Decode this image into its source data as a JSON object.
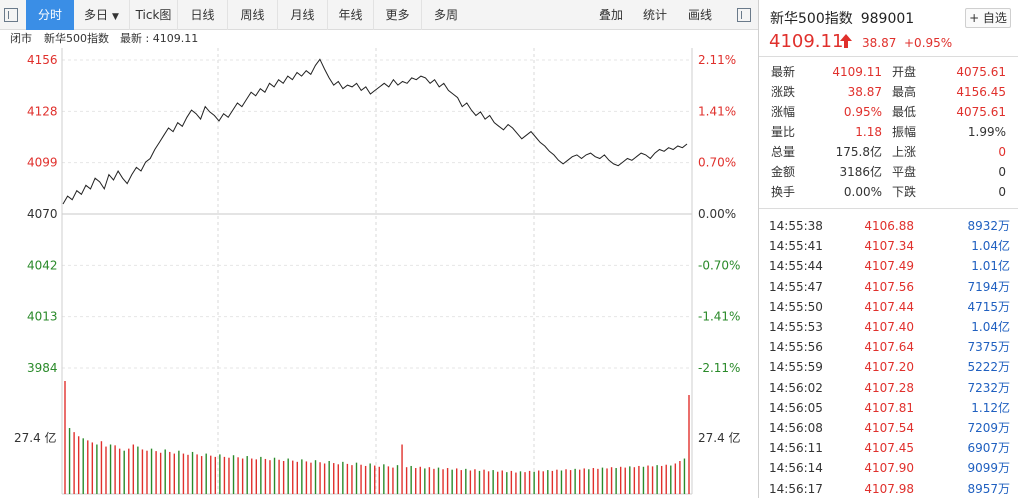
{
  "toolbar": {
    "buttons": [
      {
        "label": "分时",
        "active": true
      },
      {
        "label": "多日",
        "dropdown": true
      },
      {
        "label": "Tick图"
      },
      {
        "label": "日线"
      },
      {
        "label": "周线"
      },
      {
        "label": "月线"
      },
      {
        "label": "年线"
      },
      {
        "label": "更多"
      },
      {
        "label": "多周"
      }
    ],
    "right_items": [
      "叠加",
      "统计",
      "画线"
    ]
  },
  "infobar": {
    "status": "闭市",
    "index_name": "新华500指数",
    "latest_label": "最新 : 4109.11"
  },
  "chart_data": {
    "type": "line",
    "base": 4070,
    "price_axis_left": [
      "4156",
      "4128",
      "4099",
      "4070",
      "4042",
      "4013",
      "3984"
    ],
    "pct_axis_right": [
      "2.11%",
      "1.41%",
      "0.70%",
      "0.00%",
      "-0.70%",
      "-1.41%",
      "-2.11%"
    ],
    "ylim": [
      3984,
      4156
    ],
    "volume_label_left": "27.4 亿",
    "volume_label_right": "27.4 亿",
    "price_series": [
      4075.6,
      4080,
      4078,
      4083,
      4081,
      4086,
      4084,
      4090,
      4088,
      4084,
      4092,
      4089,
      4094,
      4090,
      4087,
      4092,
      4096,
      4094,
      4099,
      4101,
      4106,
      4110,
      4114,
      4118,
      4116,
      4121,
      4119,
      4124,
      4128,
      4126,
      4123,
      4130,
      4127,
      4125,
      4122,
      4126,
      4124,
      4128,
      4132,
      4130,
      4134,
      4138,
      4136,
      4140,
      4138,
      4143,
      4141,
      4145,
      4143,
      4147,
      4145,
      4149,
      4147,
      4150,
      4148,
      4153,
      4156.4,
      4151,
      4146,
      4142,
      4144,
      4140,
      4142,
      4141,
      4143,
      4139,
      4141,
      4137,
      4139,
      4141,
      4143,
      4141,
      4145,
      4142,
      4144,
      4143,
      4146,
      4145,
      4147,
      4146,
      4143,
      4145,
      4141,
      4143,
      4139,
      4137,
      4135,
      4130,
      4132,
      4128,
      4125,
      4127,
      4123,
      4125,
      4121,
      4119,
      4117,
      4120,
      4118,
      4115,
      4112,
      4114,
      4116,
      4113,
      4110,
      4108,
      4105,
      4103,
      4100,
      4098,
      4100,
      4102,
      4103,
      4101,
      4103,
      4104,
      4102,
      4101,
      4103,
      4100,
      4098,
      4097,
      4099,
      4101,
      4100,
      4102,
      4104,
      4103,
      4101,
      4104,
      4106,
      4105,
      4107,
      4106,
      4108,
      4107,
      4109.1
    ],
    "volume_series": [
      27.4,
      16,
      15,
      14,
      13.5,
      13,
      12.5,
      12,
      12.8,
      11.5,
      12,
      11.8,
      11,
      10.5,
      11,
      12,
      11.5,
      10.8,
      10.5,
      11,
      10.4,
      10,
      10.8,
      10.2,
      9.8,
      10.5,
      9.8,
      9.5,
      10.2,
      9.6,
      9.2,
      9.8,
      9.3,
      9,
      9.6,
      9,
      8.8,
      9.4,
      8.9,
      8.6,
      9.2,
      8.6,
      8.4,
      9,
      8.5,
      8.2,
      8.8,
      8.3,
      8,
      8.6,
      8.1,
      7.8,
      8.4,
      7.9,
      7.6,
      8.2,
      7.7,
      7.4,
      8,
      7.5,
      7.2,
      7.8,
      7.3,
      7,
      7.6,
      7.1,
      6.8,
      7.4,
      6.9,
      6.6,
      7.2,
      6.7,
      6.4,
      7,
      12,
      6.5,
      6.8,
      6.3,
      6.6,
      6.2,
      6.5,
      6.1,
      6.4,
      6,
      6.3,
      5.9,
      6.2,
      5.8,
      6.1,
      5.7,
      6,
      5.6,
      5.9,
      5.5,
      5.8,
      5.4,
      5.7,
      5.3,
      5.6,
      5.2,
      5.5,
      5.3,
      5.6,
      5.4,
      5.7,
      5.5,
      5.8,
      5.6,
      5.9,
      5.7,
      6,
      5.8,
      6.1,
      5.9,
      6.2,
      6,
      6.3,
      6.1,
      6.4,
      6.2,
      6.5,
      6.3,
      6.6,
      6.4,
      6.7,
      6.5,
      6.8,
      6.6,
      6.9,
      6.7,
      7,
      6.8,
      7.1,
      6.9,
      7.4,
      8,
      8.6,
      24
    ]
  },
  "panel": {
    "name": "新华500指数",
    "code": "989001",
    "add_button": "+ 自选",
    "price": "4109.11",
    "change": "38.87",
    "change_pct": "+0.95%",
    "stats": [
      {
        "l1": "最新",
        "v1": "4109.11",
        "c1": "red",
        "l2": "开盘",
        "v2": "4075.61",
        "c2": "red"
      },
      {
        "l1": "涨跌",
        "v1": "38.87",
        "c1": "red",
        "l2": "最高",
        "v2": "4156.45",
        "c2": "red"
      },
      {
        "l1": "涨幅",
        "v1": "0.95%",
        "c1": "red",
        "l2": "最低",
        "v2": "4075.61",
        "c2": "red"
      },
      {
        "l1": "量比",
        "v1": "1.18",
        "c1": "red",
        "l2": "振幅",
        "v2": "1.99%",
        "c2": "black"
      },
      {
        "l1": "总量",
        "v1": "175.8亿",
        "c1": "black",
        "l2": "上涨",
        "v2": "0",
        "c2": "red"
      },
      {
        "l1": "金额",
        "v1": "3186亿",
        "c1": "black",
        "l2": "平盘",
        "v2": "0",
        "c2": "black"
      },
      {
        "l1": "换手",
        "v1": "0.00%",
        "c1": "black",
        "l2": "下跌",
        "v2": "0",
        "c2": "black"
      }
    ],
    "ticks": [
      {
        "time": "14:55:38",
        "price": "4106.88",
        "vol": "8932万"
      },
      {
        "time": "14:55:41",
        "price": "4107.34",
        "vol": "1.04亿"
      },
      {
        "time": "14:55:44",
        "price": "4107.49",
        "vol": "1.01亿"
      },
      {
        "time": "14:55:47",
        "price": "4107.56",
        "vol": "7194万"
      },
      {
        "time": "14:55:50",
        "price": "4107.44",
        "vol": "4715万"
      },
      {
        "time": "14:55:53",
        "price": "4107.40",
        "vol": "1.04亿"
      },
      {
        "time": "14:55:56",
        "price": "4107.64",
        "vol": "7375万"
      },
      {
        "time": "14:55:59",
        "price": "4107.20",
        "vol": "5222万"
      },
      {
        "time": "14:56:02",
        "price": "4107.28",
        "vol": "7232万"
      },
      {
        "time": "14:56:05",
        "price": "4107.81",
        "vol": "1.12亿"
      },
      {
        "time": "14:56:08",
        "price": "4107.54",
        "vol": "7209万"
      },
      {
        "time": "14:56:11",
        "price": "4107.45",
        "vol": "6907万"
      },
      {
        "time": "14:56:14",
        "price": "4107.90",
        "vol": "9099万"
      },
      {
        "time": "14:56:17",
        "price": "4107.98",
        "vol": "8957万"
      }
    ]
  },
  "colors": {
    "up": "#e0302c",
    "down": "#2a8a2a",
    "neutral": "#333333",
    "accent": "#3a8ee6",
    "volume_up": "#e0302c",
    "volume_down": "#2a8a2a"
  }
}
